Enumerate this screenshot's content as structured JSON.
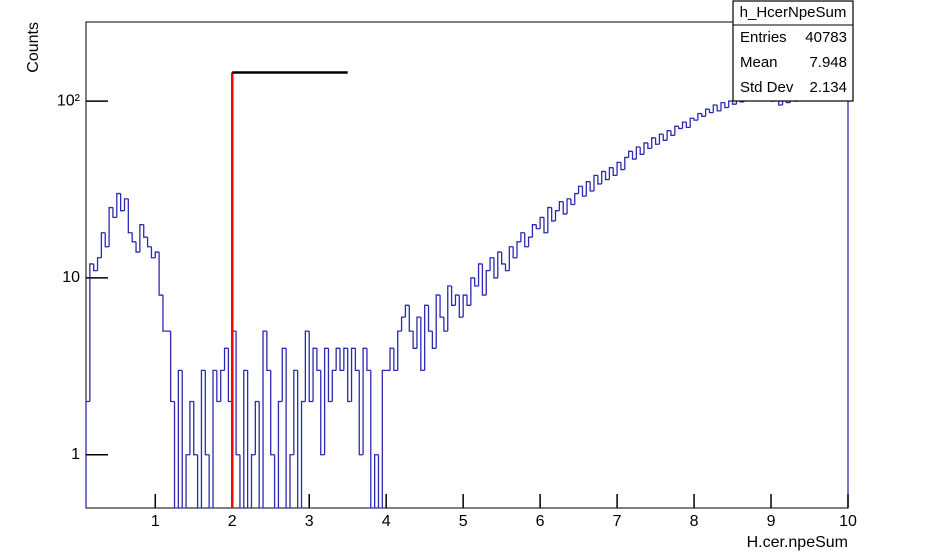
{
  "chart_data": {
    "type": "histogram",
    "title": "h_HcerNpeSum",
    "x_label": "H.cer.npeSum",
    "y_label": "Counts",
    "stats": [
      {
        "name": "Entries",
        "value": "40783"
      },
      {
        "name": "Mean",
        "value": "7.948"
      },
      {
        "name": "Std Dev",
        "value": "2.134"
      }
    ],
    "color": "#2b2bb0",
    "log_y": true,
    "grid": false,
    "xlim": [
      0.1,
      10
    ],
    "ylim": [
      0.5,
      280
    ],
    "xticks": [
      1,
      2,
      3,
      4,
      5,
      6,
      7,
      8,
      9,
      10
    ],
    "yticks": [
      1,
      10,
      {
        "value": 100,
        "label": "10²"
      }
    ],
    "bins": [
      0.1,
      0.15,
      0.2,
      0.25,
      0.3,
      0.35,
      0.4,
      0.45,
      0.5,
      0.55,
      0.6,
      0.65,
      0.7,
      0.75,
      0.8,
      0.85,
      0.9,
      0.95,
      1.0,
      1.05,
      1.1,
      1.15,
      1.2,
      1.25,
      1.3,
      1.35,
      1.4,
      1.45,
      1.5,
      1.55,
      1.6,
      1.65,
      1.7,
      1.75,
      1.8,
      1.85,
      1.9,
      1.95,
      2.0,
      2.05,
      2.1,
      2.15,
      2.2,
      2.25,
      2.3,
      2.35,
      2.4,
      2.45,
      2.5,
      2.55,
      2.6,
      2.65,
      2.7,
      2.75,
      2.8,
      2.85,
      2.9,
      2.95,
      3.0,
      3.05,
      3.1,
      3.15,
      3.2,
      3.25,
      3.3,
      3.35,
      3.4,
      3.45,
      3.5,
      3.55,
      3.6,
      3.65,
      3.7,
      3.75,
      3.8,
      3.85,
      3.9,
      3.95,
      4.0,
      4.05,
      4.1,
      4.15,
      4.2,
      4.25,
      4.3,
      4.35,
      4.4,
      4.45,
      4.5,
      4.55,
      4.6,
      4.65,
      4.7,
      4.75,
      4.8,
      4.85,
      4.9,
      4.95,
      5.0,
      5.05,
      5.1,
      5.15,
      5.2,
      5.25,
      5.3,
      5.35,
      5.4,
      5.45,
      5.5,
      5.55,
      5.6,
      5.65,
      5.7,
      5.75,
      5.8,
      5.85,
      5.9,
      5.95,
      6.0,
      6.05,
      6.1,
      6.15,
      6.2,
      6.25,
      6.3,
      6.35,
      6.4,
      6.45,
      6.5,
      6.55,
      6.6,
      6.65,
      6.7,
      6.75,
      6.8,
      6.85,
      6.9,
      6.95,
      7.0,
      7.05,
      7.1,
      7.15,
      7.2,
      7.25,
      7.3,
      7.35,
      7.4,
      7.45,
      7.5,
      7.55,
      7.6,
      7.65,
      7.7,
      7.75,
      7.8,
      7.85,
      7.9,
      7.95,
      8.0,
      8.05,
      8.1,
      8.15,
      8.2,
      8.25,
      8.3,
      8.35,
      8.4,
      8.45,
      8.5,
      8.55,
      8.6,
      8.65,
      8.7,
      8.75,
      8.8,
      8.85,
      8.9,
      8.95,
      9.0,
      9.05,
      9.1,
      9.15,
      9.2,
      9.25,
      9.3,
      9.35,
      9.4,
      9.45,
      9.5,
      9.55,
      9.6,
      9.65,
      9.7,
      9.75,
      9.8,
      9.85,
      9.9,
      9.95,
      10.0
    ],
    "values": [
      2,
      12,
      11,
      13,
      18,
      15,
      25,
      22,
      30,
      24,
      28,
      18,
      16,
      14,
      20,
      17,
      15,
      13,
      14,
      8,
      5,
      5,
      2,
      0,
      3,
      0,
      1,
      2,
      1,
      0,
      3,
      1,
      0,
      3,
      2,
      3,
      4,
      2,
      5,
      1,
      0,
      3,
      0,
      1,
      2,
      0,
      5,
      3,
      1,
      0,
      2,
      4,
      0,
      1,
      3,
      0,
      2,
      5,
      2,
      4,
      3,
      1,
      4,
      2,
      3,
      4,
      3,
      4,
      2,
      4,
      3,
      1,
      4,
      3,
      0,
      1,
      0,
      3,
      3,
      4,
      3,
      5,
      6,
      7,
      5,
      4,
      6,
      3,
      7,
      5,
      4,
      8,
      6,
      5,
      9,
      7,
      8,
      6,
      8,
      7,
      10,
      9,
      12,
      8,
      11,
      13,
      10,
      14,
      12,
      11,
      15,
      13,
      16,
      18,
      15,
      17,
      20,
      19,
      22,
      18,
      25,
      21,
      24,
      27,
      23,
      28,
      26,
      30,
      33,
      29,
      35,
      31,
      38,
      34,
      40,
      36,
      42,
      38,
      45,
      41,
      48,
      52,
      47,
      55,
      50,
      58,
      54,
      62,
      57,
      65,
      60,
      68,
      64,
      72,
      70,
      76,
      71,
      80,
      78,
      85,
      82,
      90,
      86,
      95,
      88,
      98,
      92,
      100,
      96,
      105,
      99,
      108,
      103,
      110,
      106,
      112,
      108,
      115,
      100,
      108,
      95,
      104,
      98,
      106,
      100,
      104,
      108,
      102,
      106,
      110,
      104,
      108,
      112,
      106,
      110,
      114,
      108,
      112
    ],
    "cut_lines": [
      {
        "x": [
          2,
          2
        ],
        "y": [
          0.5,
          145
        ],
        "color": "#ff0000"
      },
      {
        "x": [
          2,
          3.5
        ],
        "y": [
          145,
          145
        ],
        "color": "#000000"
      }
    ]
  }
}
